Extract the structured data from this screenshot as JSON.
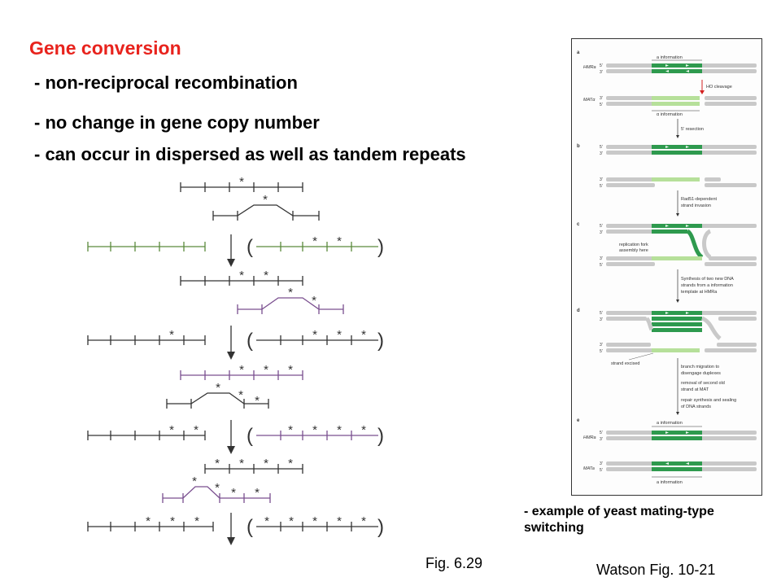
{
  "slide": {
    "title": "Gene conversion",
    "bullets": [
      "- non-reciprocal recombination",
      "- no change in gene copy number",
      "- can occur in dispersed as well as tandem repeats"
    ],
    "side_caption_line1": "- example of yeast mating-type",
    "side_caption_line2": "switching",
    "fig_left": "Fig. 6.29",
    "fig_right": "Watson Fig. 10-21"
  },
  "conversion_diagram": {
    "mark": "*",
    "brackets": [
      "(",
      ")"
    ],
    "colors": {
      "green": "#5a8a3c",
      "purple": "#7a4f8f",
      "line": "#333333"
    }
  },
  "yeast_figure": {
    "panel_labels": [
      "a",
      "b",
      "c",
      "d",
      "e"
    ],
    "locus_labels": {
      "hmr": "HMRa",
      "mat_alpha": "MATα",
      "mat": "MATa",
      "five": "5'",
      "three": "3'"
    },
    "annotations": {
      "a_information": "a information",
      "ho_cleavage": "HO cleavage",
      "alpha_information": "α information",
      "resection": "5' resection",
      "rad51": "Rad51-dependent",
      "strand_invasion": "strand invasion",
      "fork1": "replication fork",
      "fork2": "assembly here",
      "synth1": "Synthesis of two new DNA",
      "synth2": "strands from a information",
      "synth3": "template at HMRa",
      "excised": "strand excised",
      "branch1": "branch migration to",
      "branch2": "disengage duplexes",
      "removal1": "removal of second old",
      "removal2": "strand at MAT",
      "repair1": "repair synthesis and sealing",
      "repair2": "of DNA strands",
      "a_info_bottom": "a information"
    },
    "colors": {
      "dark_green": "#2e9a4e",
      "light_green": "#b6e09a",
      "gray": "#c9c9c9",
      "red": "#d42020"
    }
  }
}
